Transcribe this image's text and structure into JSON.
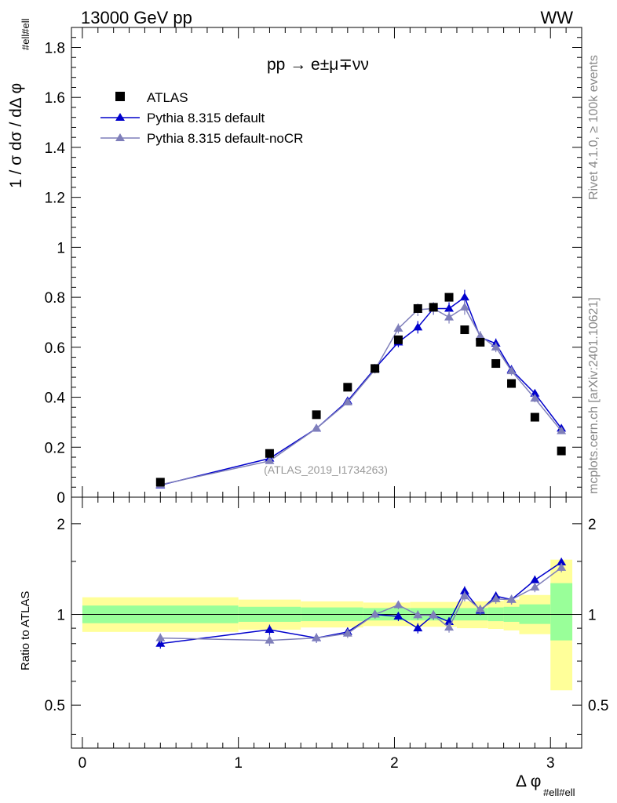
{
  "header": {
    "energy_label": "13000 GeV pp",
    "process_tag": "WW"
  },
  "side_labels": {
    "rivet": "Rivet 4.1.0, ≥ 100k events",
    "mcplots": "mcplots.cern.ch [arXiv:2401.10621]"
  },
  "chart_data": {
    "type": "line",
    "title": "pp → e±μ∓νν",
    "xlabel": "Δ φ",
    "xlabel_sub": "#ell#ell",
    "ylabel": "1 / σ  dσ / dΔ φ",
    "ylabel_sub": "#ell#ell",
    "ratio_ylabel": "Ratio to ATLAS",
    "analysis_id": "(ATLAS_2019_I1734263)",
    "xlim": [
      -0.07,
      3.2
    ],
    "ylim": [
      0,
      1.88
    ],
    "ratio_ylim": [
      0.36,
      2.45
    ],
    "x_ticks": [
      "0",
      "1",
      "2",
      "3"
    ],
    "y_ticks": [
      "0",
      "0.2",
      "0.4",
      "0.6",
      "0.8",
      "1",
      "1.2",
      "1.4",
      "1.6",
      "1.8"
    ],
    "ratio_ticks": [
      "0.5",
      "1",
      "2"
    ],
    "reference": {
      "name": "ATLAS",
      "x": [
        0.5,
        1.2,
        1.5,
        1.7,
        1.875,
        2.025,
        2.15,
        2.25,
        2.35,
        2.45,
        2.55,
        2.65,
        2.75,
        2.9,
        3.07
      ],
      "y": [
        0.06,
        0.175,
        0.33,
        0.44,
        0.515,
        0.63,
        0.755,
        0.76,
        0.8,
        0.67,
        0.62,
        0.535,
        0.455,
        0.32,
        0.185
      ]
    },
    "series": [
      {
        "name": "Pythia 8.315 default",
        "color": "#0000cc",
        "x": [
          0.5,
          1.2,
          1.5,
          1.7,
          1.875,
          2.025,
          2.15,
          2.25,
          2.35,
          2.45,
          2.55,
          2.65,
          2.75,
          2.9,
          3.07
        ],
        "y": [
          0.048,
          0.155,
          0.275,
          0.385,
          0.515,
          0.62,
          0.68,
          0.755,
          0.755,
          0.8,
          0.64,
          0.615,
          0.51,
          0.415,
          0.275
        ],
        "yerr": [
          0.003,
          0.006,
          0.01,
          0.012,
          0.015,
          0.02,
          0.025,
          0.025,
          0.025,
          0.03,
          0.02,
          0.02,
          0.018,
          0.015,
          0.012
        ],
        "ratio": [
          0.8,
          0.89,
          0.835,
          0.875,
          1.0,
          0.985,
          0.9,
          0.995,
          0.945,
          1.195,
          1.03,
          1.15,
          1.12,
          1.3,
          1.49
        ],
        "ratio_err": [
          0.03,
          0.035,
          0.03,
          0.03,
          0.03,
          0.035,
          0.035,
          0.035,
          0.035,
          0.045,
          0.035,
          0.04,
          0.04,
          0.045,
          0.05
        ]
      },
      {
        "name": "Pythia 8.315 default-noCR",
        "color": "#7f7fba",
        "x": [
          0.5,
          1.2,
          1.5,
          1.7,
          1.875,
          2.025,
          2.15,
          2.25,
          2.35,
          2.45,
          2.55,
          2.65,
          2.75,
          2.9,
          3.07
        ],
        "y": [
          0.05,
          0.145,
          0.275,
          0.38,
          0.51,
          0.675,
          0.75,
          0.755,
          0.72,
          0.76,
          0.645,
          0.6,
          0.505,
          0.395,
          0.265
        ],
        "yerr": [
          0.003,
          0.006,
          0.01,
          0.012,
          0.015,
          0.02,
          0.025,
          0.025,
          0.025,
          0.03,
          0.02,
          0.02,
          0.018,
          0.015,
          0.012
        ],
        "ratio": [
          0.835,
          0.82,
          0.835,
          0.865,
          1.0,
          1.075,
          0.995,
          0.995,
          0.905,
          1.15,
          1.04,
          1.125,
          1.12,
          1.23,
          1.43
        ],
        "ratio_err": [
          0.03,
          0.035,
          0.03,
          0.03,
          0.03,
          0.035,
          0.035,
          0.035,
          0.035,
          0.045,
          0.035,
          0.04,
          0.04,
          0.045,
          0.05
        ]
      }
    ],
    "uncertainty_bins": [
      {
        "x0": 0.0,
        "x1": 1.0,
        "g_lo": 0.935,
        "g_hi": 1.07,
        "y_lo": 0.875,
        "y_hi": 1.14
      },
      {
        "x0": 1.0,
        "x1": 1.4,
        "g_lo": 0.945,
        "g_hi": 1.06,
        "y_lo": 0.89,
        "y_hi": 1.12
      },
      {
        "x0": 1.4,
        "x1": 1.8,
        "g_lo": 0.95,
        "g_hi": 1.055,
        "y_lo": 0.905,
        "y_hi": 1.105
      },
      {
        "x0": 1.8,
        "x1": 2.1,
        "g_lo": 0.955,
        "g_hi": 1.05,
        "y_lo": 0.915,
        "y_hi": 1.095
      },
      {
        "x0": 2.1,
        "x1": 2.4,
        "g_lo": 0.955,
        "g_hi": 1.05,
        "y_lo": 0.91,
        "y_hi": 1.1
      },
      {
        "x0": 2.4,
        "x1": 2.6,
        "g_lo": 0.955,
        "g_hi": 1.05,
        "y_lo": 0.9,
        "y_hi": 1.105
      },
      {
        "x0": 2.6,
        "x1": 2.7,
        "g_lo": 0.95,
        "g_hi": 1.055,
        "y_lo": 0.895,
        "y_hi": 1.11
      },
      {
        "x0": 2.7,
        "x1": 2.8,
        "g_lo": 0.945,
        "g_hi": 1.06,
        "y_lo": 0.885,
        "y_hi": 1.12
      },
      {
        "x0": 2.8,
        "x1": 3.0,
        "g_lo": 0.93,
        "g_hi": 1.08,
        "y_lo": 0.86,
        "y_hi": 1.16
      },
      {
        "x0": 3.0,
        "x1": 3.14,
        "g_lo": 0.82,
        "g_hi": 1.27,
        "y_lo": 0.56,
        "y_hi": 1.52
      }
    ],
    "band_colors": {
      "inner": "#99ff99",
      "outer": "#ffff99"
    }
  }
}
